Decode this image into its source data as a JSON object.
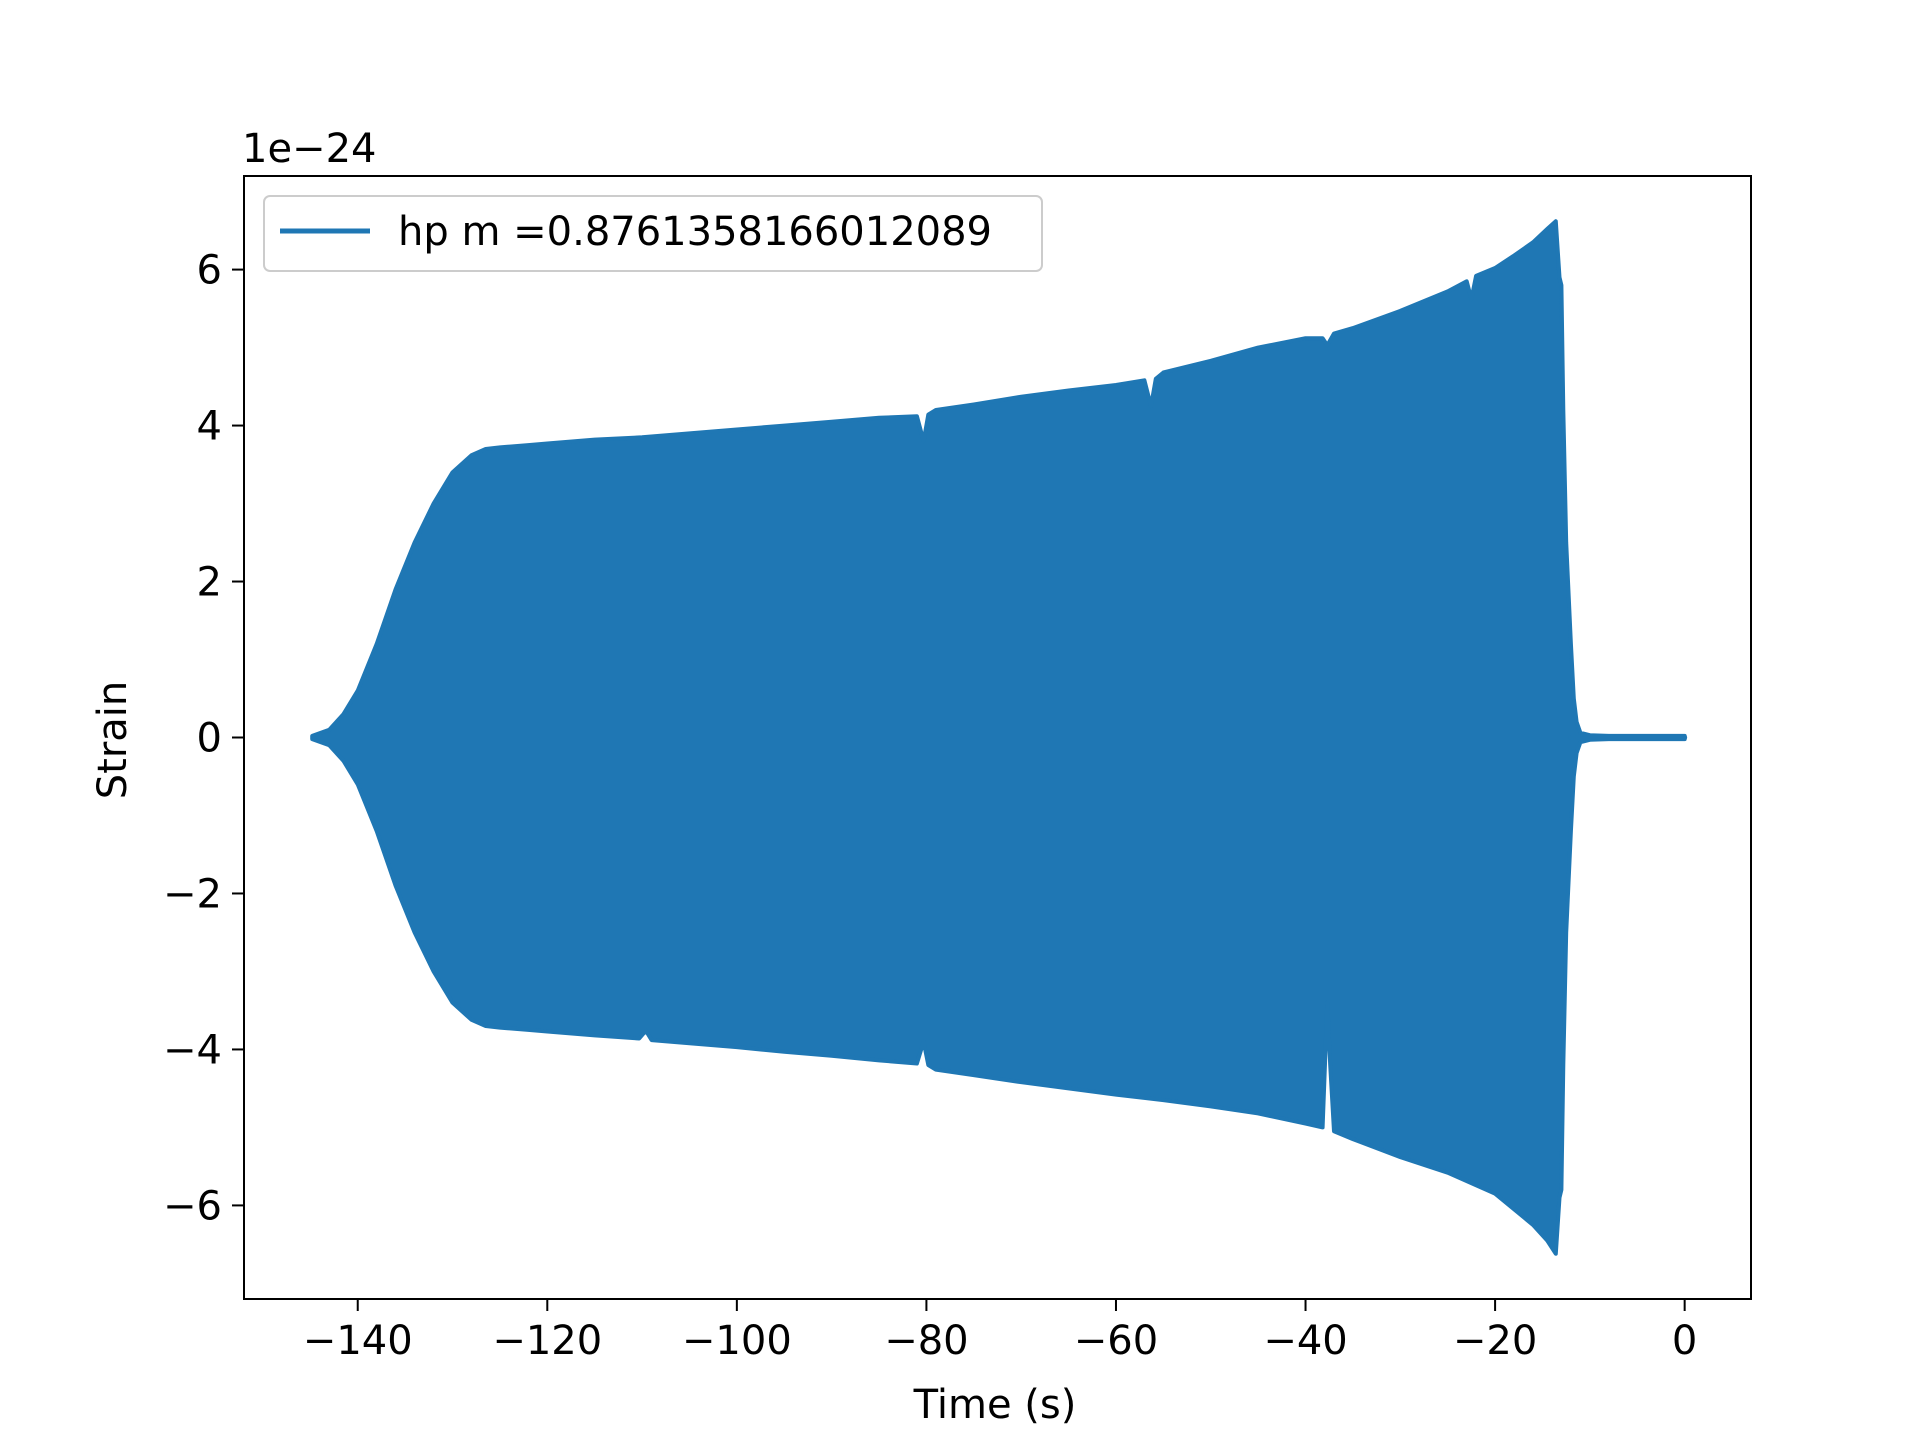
{
  "chart_data": {
    "type": "area",
    "xlabel": "Time (s)",
    "ylabel": "Strain",
    "y_scale_label": "1e−24",
    "xlim": [
      -152,
      7
    ],
    "ylim": [
      -7.2,
      7.2
    ],
    "x_ticks": [
      -140,
      -120,
      -100,
      -80,
      -60,
      -40,
      -20,
      0
    ],
    "x_tick_labels": [
      "−140",
      "−120",
      "−100",
      "−80",
      "−60",
      "−40",
      "−20",
      "0"
    ],
    "y_ticks": [
      -6,
      -4,
      -2,
      0,
      2,
      4,
      6
    ],
    "y_tick_labels": [
      "−6",
      "−4",
      "−2",
      "0",
      "2",
      "4",
      "6"
    ],
    "grid": false,
    "legend_position": "top-left",
    "series": [
      {
        "name": "hp m =0.8761358166012089",
        "color": "#1f77b4",
        "upper_envelope": {
          "x": [
            -144.8,
            -143,
            -141.5,
            -140,
            -138,
            -136,
            -134,
            -132,
            -130,
            -128,
            -126.5,
            -125,
            -122,
            -120,
            -115,
            -110,
            -105,
            -100,
            -95,
            -90,
            -85,
            -81,
            -80.3,
            -79.8,
            -79,
            -75,
            -70,
            -65,
            -60,
            -57,
            -56.3,
            -55.8,
            -55,
            -50,
            -45,
            -40,
            -38.2,
            -37.7,
            -37,
            -35,
            -30,
            -25,
            -23,
            -22.5,
            -22,
            -20,
            -18,
            -16,
            -14.5,
            -13.6,
            -13.2,
            -13,
            -12.8,
            -12.5,
            -12,
            -11.7,
            -11.4,
            -11,
            -10,
            -8,
            -5,
            -2,
            0
          ],
          "y": [
            0.02,
            0.1,
            0.3,
            0.6,
            1.2,
            1.9,
            2.5,
            3.0,
            3.4,
            3.62,
            3.7,
            3.72,
            3.75,
            3.77,
            3.82,
            3.85,
            3.9,
            3.95,
            4.0,
            4.05,
            4.1,
            4.12,
            3.8,
            4.14,
            4.2,
            4.27,
            4.37,
            4.45,
            4.52,
            4.58,
            4.25,
            4.6,
            4.68,
            4.83,
            5.0,
            5.12,
            5.12,
            5.03,
            5.18,
            5.25,
            5.47,
            5.72,
            5.85,
            5.62,
            5.92,
            6.02,
            6.18,
            6.35,
            6.52,
            6.62,
            5.9,
            5.8,
            4.2,
            2.5,
            1.2,
            0.5,
            0.2,
            0.06,
            0.03,
            0.02,
            0.02,
            0.02,
            0.02
          ]
        },
        "lower_envelope": {
          "x": [
            -144.8,
            -143,
            -141.5,
            -140,
            -138,
            -136,
            -134,
            -132,
            -130,
            -128,
            -126.5,
            -125,
            -122,
            -120,
            -115,
            -110.3,
            -109.6,
            -109,
            -105,
            -100,
            -95,
            -90,
            -85,
            -81,
            -80.3,
            -79.8,
            -79,
            -75,
            -70,
            -65,
            -60,
            -55,
            -50,
            -45,
            -40,
            -38.2,
            -37.7,
            -37.4,
            -37,
            -35,
            -30,
            -25,
            -20,
            -18,
            -16,
            -14.5,
            -13.6,
            -13.2,
            -13,
            -12.8,
            -12.5,
            -12,
            -11.7,
            -11.4,
            -11,
            -10,
            -8,
            -5,
            -2,
            0
          ],
          "y": [
            -0.02,
            -0.1,
            -0.3,
            -0.6,
            -1.2,
            -1.9,
            -2.5,
            -3.0,
            -3.4,
            -3.62,
            -3.7,
            -3.72,
            -3.75,
            -3.77,
            -3.82,
            -3.86,
            -3.76,
            -3.88,
            -3.92,
            -3.97,
            -4.03,
            -4.08,
            -4.14,
            -4.18,
            -3.9,
            -4.2,
            -4.26,
            -4.33,
            -4.42,
            -4.5,
            -4.58,
            -4.65,
            -4.73,
            -4.82,
            -4.95,
            -5.0,
            -3.4,
            -4.2,
            -5.05,
            -5.15,
            -5.38,
            -5.58,
            -5.85,
            -6.05,
            -6.25,
            -6.45,
            -6.62,
            -5.9,
            -5.8,
            -4.2,
            -2.5,
            -1.2,
            -0.5,
            -0.2,
            -0.06,
            -0.03,
            -0.02,
            -0.02,
            -0.02,
            -0.02
          ]
        }
      }
    ]
  }
}
